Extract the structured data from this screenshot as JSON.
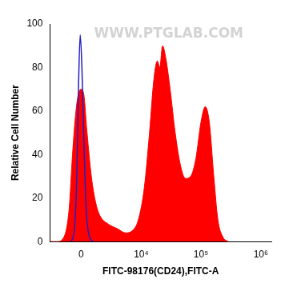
{
  "chart_data": {
    "type": "line",
    "x_label": "FITC-98176(CD24),FITC-A",
    "y_label": "Relative Cell Number",
    "annotations": [
      "WWW.PTGLAB.COM"
    ],
    "log": "x",
    "grid": false,
    "xlim": [
      -3000,
      1500000
    ],
    "xticks": [
      0,
      {
        "value": 10000,
        "label": "10⁴"
      },
      {
        "value": 100000,
        "label": "10⁵"
      },
      {
        "value": 1000000,
        "label": "10⁶"
      }
    ],
    "ylim": [
      0,
      100
    ],
    "yticks": [
      0,
      20,
      40,
      60,
      80,
      100
    ],
    "series": [
      {
        "type": "area",
        "color": "#ff0000",
        "x": [
          -2960,
          -2120,
          -1420,
          -950,
          -670,
          -395,
          -200,
          0,
          200,
          465,
          810,
          1180,
          1570,
          2520,
          3740,
          5350,
          7020,
          8920,
          11300,
          13800,
          16400,
          18700,
          20600,
          22800,
          26000,
          30600,
          37200,
          45600,
          55200,
          67400,
          82200,
          100400,
          118000,
          138000,
          164000,
          192000,
          234000,
          286000
        ],
        "values": [
          0,
          0,
          2,
          15,
          40,
          60,
          68,
          70,
          68,
          50,
          30,
          18,
          12,
          8,
          6,
          4,
          5,
          10,
          25,
          50,
          75,
          83,
          80,
          90,
          84,
          70,
          50,
          35,
          29,
          30,
          38,
          55,
          62,
          55,
          30,
          10,
          2,
          0
        ]
      },
      {
        "type": "line",
        "color": "#2020c0",
        "x": [
          -800,
          -530,
          -330,
          -200,
          -66,
          66,
          200,
          395,
          670,
          950
        ],
        "values": [
          0,
          5,
          30,
          70,
          95,
          80,
          50,
          15,
          2,
          0
        ]
      }
    ]
  }
}
